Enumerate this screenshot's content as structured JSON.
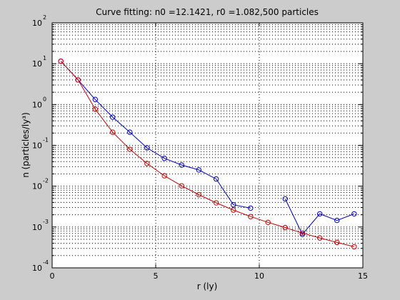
{
  "chart_data": {
    "type": "line",
    "title": "Curve fitting: n0 =12.1421, r0 =1.082,500 particles",
    "xlabel": "r (ly)",
    "ylabel": "n (particles/ly³)",
    "xlim": [
      0,
      15
    ],
    "ylim": [
      0.0001,
      100
    ],
    "yscale": "log",
    "grid": true,
    "x_ticks": [
      0,
      5,
      10,
      15
    ],
    "x_tick_labels": [
      "0",
      "5",
      "10",
      "15"
    ],
    "y_ticks": [
      0.0001,
      0.001,
      0.01,
      0.1,
      1,
      10,
      100
    ],
    "y_tick_labels": [
      {
        "base": "10",
        "exp": "-4"
      },
      {
        "base": "10",
        "exp": "-3"
      },
      {
        "base": "10",
        "exp": "-2"
      },
      {
        "base": "10",
        "exp": "-1"
      },
      {
        "base": "10",
        "exp": "0"
      },
      {
        "base": "10",
        "exp": "1"
      },
      {
        "base": "10",
        "exp": "2"
      }
    ],
    "series": [
      {
        "color": "#0000cc",
        "marker": "circle",
        "segments": [
          {
            "x": [
              0.42,
              1.25,
              2.08,
              2.92,
              3.75,
              4.58,
              5.42,
              6.25,
              7.08,
              7.92,
              8.75,
              9.58
            ],
            "y": [
              11.5,
              4.0,
              1.33,
              0.49,
              0.21,
              0.087,
              0.048,
              0.033,
              0.025,
              0.015,
              0.0035,
              0.0029
            ]
          },
          {
            "x": [
              11.25,
              12.08,
              12.92,
              13.75,
              14.58
            ],
            "y": [
              0.0049,
              0.00066,
              0.0021,
              0.00145,
              0.0021
            ]
          }
        ]
      },
      {
        "color": "#cc0000",
        "marker": "circle",
        "segments": [
          {
            "x": [
              0.42,
              1.25,
              2.08,
              2.92,
              3.75,
              4.58,
              5.42,
              6.25,
              7.08,
              7.92,
              8.75,
              9.58,
              10.42,
              11.25,
              12.08,
              12.92,
              13.75,
              14.58
            ],
            "y": [
              11.5,
              4.0,
              0.77,
              0.21,
              0.08,
              0.036,
              0.018,
              0.0102,
              0.0062,
              0.0039,
              0.0026,
              0.0018,
              0.0013,
              0.00097,
              0.00071,
              0.00054,
              0.00042,
              0.00033
            ]
          }
        ]
      }
    ]
  }
}
